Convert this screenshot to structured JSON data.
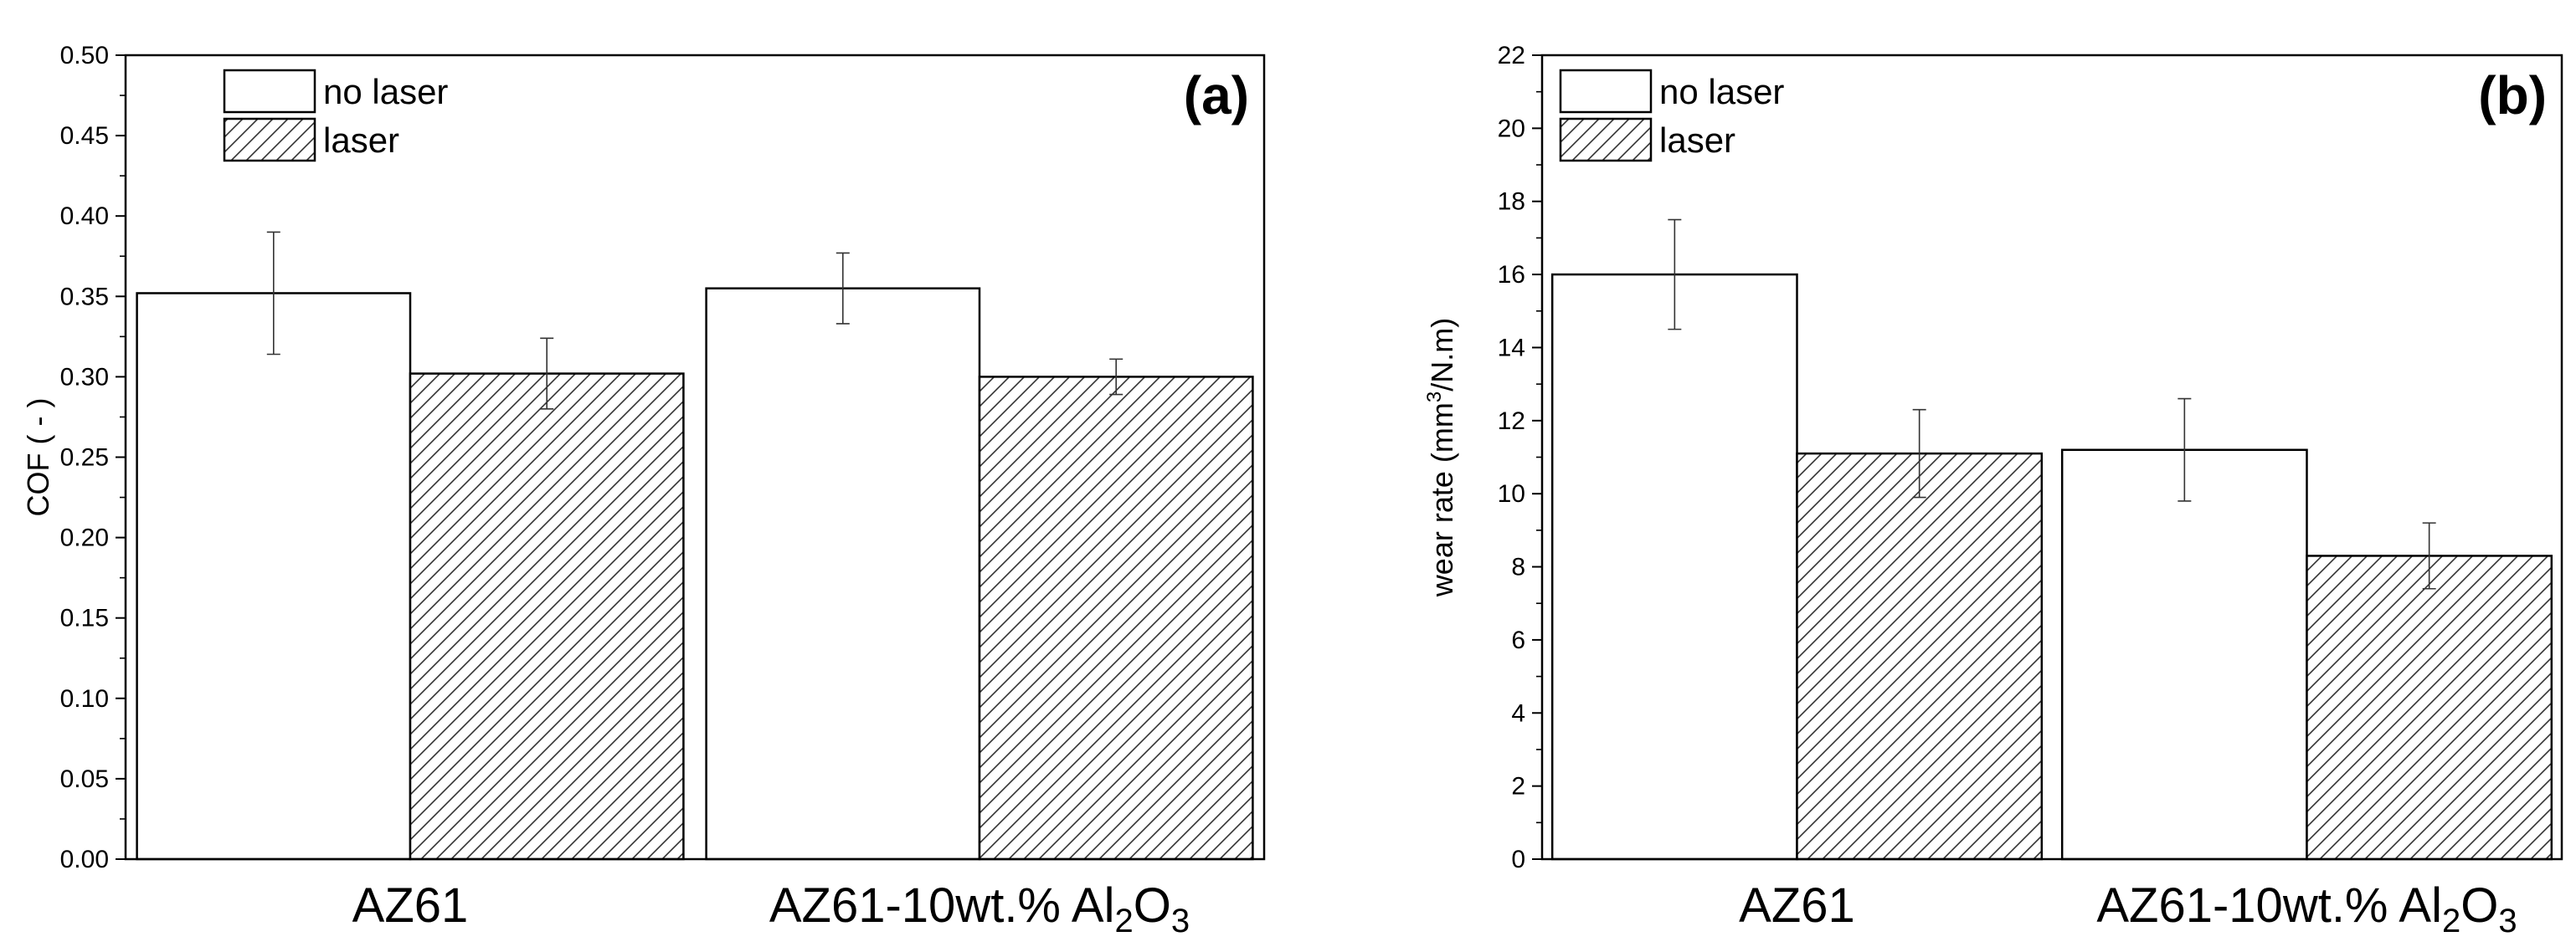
{
  "chart_data": [
    {
      "type": "bar",
      "panel_label": "(a)",
      "ylabel": "COF ( - )",
      "ylim": [
        0,
        0.5
      ],
      "yticks": [
        "0.00",
        "0.05",
        "0.10",
        "0.15",
        "0.20",
        "0.25",
        "0.30",
        "0.35",
        "0.40",
        "0.45",
        "0.50"
      ],
      "categories": [
        "AZ61",
        "AZ61-10wt.% Al2O3"
      ],
      "category_labels": [
        {
          "main": "AZ61"
        },
        {
          "main": "AZ61-10wt.% Al",
          "sub": "2",
          "tail": "O",
          "sub2": "3"
        }
      ],
      "series": [
        {
          "name": "no laser",
          "pattern": "none",
          "values": [
            0.352,
            0.355
          ],
          "errors": [
            0.038,
            0.022
          ]
        },
        {
          "name": "laser",
          "pattern": "hatch",
          "values": [
            0.302,
            0.3
          ],
          "errors": [
            0.022,
            0.011
          ]
        }
      ],
      "legend": {
        "entries": [
          "no laser",
          "laser"
        ],
        "placement": "top-left"
      }
    },
    {
      "type": "bar",
      "panel_label": "(b)",
      "ylabel": "wear rate (mm3/N.m)",
      "ylabel_parts": {
        "pre": "wear rate (mm",
        "sup": "3",
        "post": "/N.m)"
      },
      "ylim": [
        0,
        22
      ],
      "yticks": [
        "0",
        "2",
        "4",
        "6",
        "8",
        "10",
        "12",
        "14",
        "16",
        "18",
        "20",
        "22"
      ],
      "categories": [
        "AZ61",
        "AZ61-10wt.% Al2O3"
      ],
      "category_labels": [
        {
          "main": "AZ61"
        },
        {
          "main": "AZ61-10wt.% Al",
          "sub": "2",
          "tail": "O",
          "sub2": "3"
        }
      ],
      "series": [
        {
          "name": "no laser",
          "pattern": "none",
          "values": [
            16.0,
            11.2
          ],
          "errors": [
            1.5,
            1.4
          ]
        },
        {
          "name": "laser",
          "pattern": "hatch",
          "values": [
            11.1,
            8.3
          ],
          "errors": [
            1.2,
            0.9
          ]
        }
      ],
      "legend": {
        "entries": [
          "no laser",
          "laser"
        ],
        "placement": "top-left"
      }
    }
  ]
}
